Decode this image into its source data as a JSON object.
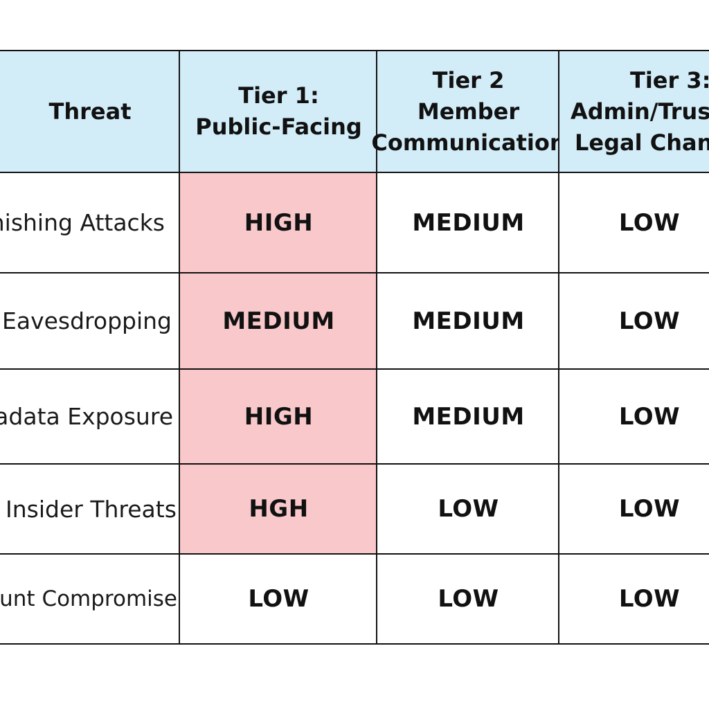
{
  "table": {
    "highlight_color": "#f9c8ca",
    "header_color": "#d2ecf8",
    "headers": [
      {
        "lines": [
          "Threat"
        ]
      },
      {
        "lines": [
          "Tier 1:",
          "Public-Facing"
        ]
      },
      {
        "lines": [
          "Tier 2",
          "Member",
          "Communication"
        ]
      },
      {
        "lines": [
          "Tier 3:",
          "Admin/Trust",
          "Legal Channel"
        ]
      }
    ],
    "rows": [
      {
        "threat": "Phishing Attacks",
        "tier1": "HIGH",
        "tier2": "MEDIUM",
        "tier3": "LOW"
      },
      {
        "threat": "Eavesdropping",
        "tier1": "MEDIUM",
        "tier2": "MEDIUM",
        "tier3": "LOW"
      },
      {
        "threat": "Metadata Exposure",
        "tier1": "HIGH",
        "tier2": "MEDIUM",
        "tier3": "LOW"
      },
      {
        "threat": "Insider Threats",
        "tier1": "HGH",
        "tier2": "LOW",
        "tier3": "LOW"
      },
      {
        "threat": "Account Compromise",
        "tier1": "LOW",
        "tier2": "LOW",
        "tier3": "LOW"
      }
    ]
  }
}
